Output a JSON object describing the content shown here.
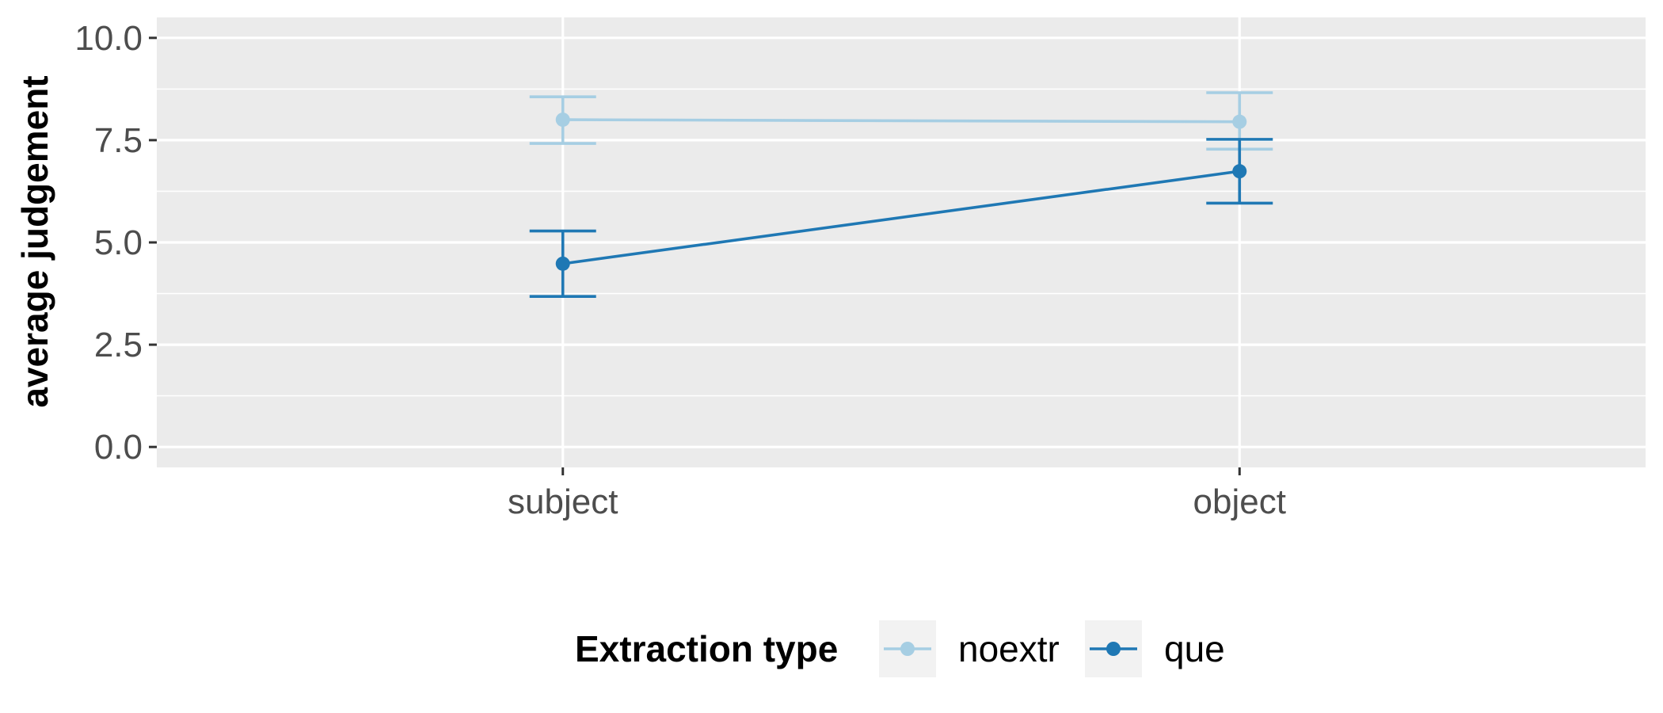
{
  "chart_data": {
    "type": "line",
    "ylabel": "average judgement",
    "xlabel": "",
    "categories": [
      "subject",
      "object"
    ],
    "ylim": [
      -0.5,
      10.5
    ],
    "yticks": [
      0.0,
      2.5,
      5.0,
      7.5,
      10.0
    ],
    "ytick_labels": [
      "0.0",
      "2.5",
      "5.0",
      "7.5",
      "10.0"
    ],
    "grid": true,
    "legend": {
      "title": "Extraction type",
      "placement": "bottom"
    },
    "series": [
      {
        "name": "noextr",
        "color": "#a6cee3",
        "values": [
          8.0,
          7.95
        ],
        "error_low": [
          7.42,
          7.28
        ],
        "error_high": [
          8.56,
          8.66
        ]
      },
      {
        "name": "que",
        "color": "#1f78b4",
        "values": [
          4.48,
          6.74
        ],
        "error_low": [
          3.68,
          5.96
        ],
        "error_high": [
          5.28,
          7.52
        ]
      }
    ]
  }
}
